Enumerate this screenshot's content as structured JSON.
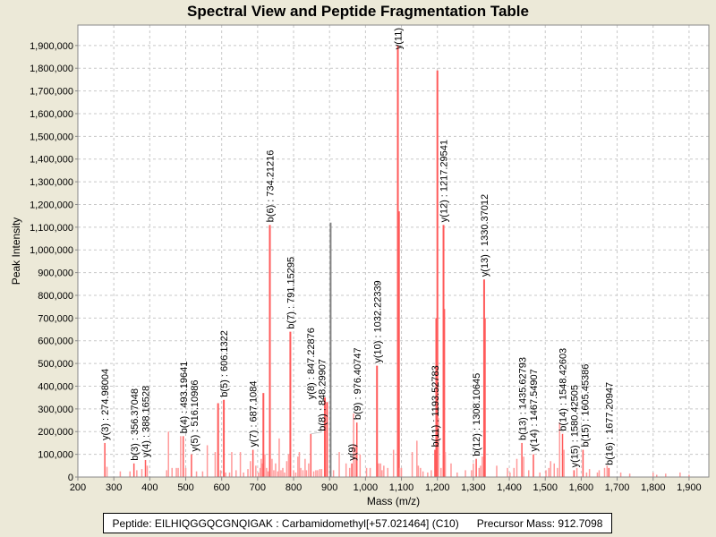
{
  "chart_data": {
    "type": "bar",
    "title": "Spectral View and Peptide Fragmentation Table",
    "xlabel": "Mass (m/z)",
    "ylabel": "Peak Intensity",
    "xlim": [
      200,
      1955
    ],
    "ylim": [
      0,
      1990000
    ],
    "xticks": [
      200,
      300,
      400,
      500,
      600,
      700,
      800,
      900,
      1000,
      1100,
      1200,
      1300,
      1400,
      1500,
      1600,
      1700,
      1800,
      1900
    ],
    "yticks": [
      0,
      100000,
      200000,
      300000,
      400000,
      500000,
      600000,
      700000,
      800000,
      900000,
      1000000,
      1100000,
      1200000,
      1300000,
      1400000,
      1500000,
      1600000,
      1700000,
      1800000,
      1900000
    ],
    "grid": true,
    "colors": {
      "annotated": "#ff5a5a",
      "peak": "#ff9a9a",
      "precursor": "#808080",
      "grid": "#c8c8c8"
    },
    "peaks": [
      [
        275,
        150000
      ],
      [
        281,
        45000
      ],
      [
        318,
        25000
      ],
      [
        345,
        25000
      ],
      [
        356,
        60000
      ],
      [
        364,
        30000
      ],
      [
        378,
        35000
      ],
      [
        388,
        75000
      ],
      [
        393,
        50000
      ],
      [
        447,
        30000
      ],
      [
        452,
        200000
      ],
      [
        462,
        40000
      ],
      [
        474,
        40000
      ],
      [
        479,
        40000
      ],
      [
        486,
        180000
      ],
      [
        493,
        180000
      ],
      [
        500,
        40000
      ],
      [
        516,
        100000
      ],
      [
        530,
        25000
      ],
      [
        547,
        25000
      ],
      [
        560,
        140000
      ],
      [
        582,
        110000
      ],
      [
        590,
        325000
      ],
      [
        597,
        30000
      ],
      [
        606,
        340000
      ],
      [
        611,
        20000
      ],
      [
        622,
        20000
      ],
      [
        628,
        110000
      ],
      [
        640,
        30000
      ],
      [
        652,
        110000
      ],
      [
        661,
        20000
      ],
      [
        673,
        35000
      ],
      [
        680,
        70000
      ],
      [
        687,
        120000
      ],
      [
        695,
        50000
      ],
      [
        702,
        20000
      ],
      [
        707,
        40000
      ],
      [
        710,
        80000
      ],
      [
        713,
        60000
      ],
      [
        716,
        370000
      ],
      [
        720,
        100000
      ],
      [
        725,
        40000
      ],
      [
        729,
        25000
      ],
      [
        734,
        1110000
      ],
      [
        740,
        80000
      ],
      [
        745,
        30000
      ],
      [
        750,
        60000
      ],
      [
        756,
        25000
      ],
      [
        760,
        170000
      ],
      [
        765,
        30000
      ],
      [
        770,
        40000
      ],
      [
        775,
        20000
      ],
      [
        781,
        70000
      ],
      [
        786,
        100000
      ],
      [
        791,
        640000
      ],
      [
        800,
        30000
      ],
      [
        806,
        20000
      ],
      [
        812,
        90000
      ],
      [
        816,
        110000
      ],
      [
        820,
        40000
      ],
      [
        826,
        30000
      ],
      [
        832,
        80000
      ],
      [
        836,
        30000
      ],
      [
        842,
        60000
      ],
      [
        848,
        190000
      ],
      [
        856,
        25000
      ],
      [
        862,
        30000
      ],
      [
        867,
        30000
      ],
      [
        873,
        35000
      ],
      [
        878,
        35000
      ],
      [
        887,
        350000
      ],
      [
        893,
        330000
      ],
      [
        903,
        1120000,
        "precursor"
      ],
      [
        911,
        30000
      ],
      [
        927,
        110000
      ],
      [
        946,
        60000
      ],
      [
        956,
        40000
      ],
      [
        962,
        60000
      ],
      [
        967,
        280000
      ],
      [
        972,
        140000
      ],
      [
        976,
        240000
      ],
      [
        985,
        100000
      ],
      [
        1003,
        40000
      ],
      [
        1013,
        40000
      ],
      [
        1032,
        490000
      ],
      [
        1037,
        60000
      ],
      [
        1042,
        60000
      ],
      [
        1046,
        30000
      ],
      [
        1051,
        50000
      ],
      [
        1062,
        40000
      ],
      [
        1078,
        120000
      ],
      [
        1090,
        1900000
      ],
      [
        1093,
        1170000
      ],
      [
        1095,
        40000
      ],
      [
        1100,
        40000
      ],
      [
        1130,
        110000
      ],
      [
        1143,
        160000
      ],
      [
        1147,
        50000
      ],
      [
        1153,
        40000
      ],
      [
        1160,
        25000
      ],
      [
        1173,
        20000
      ],
      [
        1183,
        30000
      ],
      [
        1193,
        120000
      ],
      [
        1197,
        700000
      ],
      [
        1200,
        1790000
      ],
      [
        1203,
        260000
      ],
      [
        1210,
        40000
      ],
      [
        1217,
        1110000
      ],
      [
        1219,
        740000
      ],
      [
        1222,
        110000
      ],
      [
        1238,
        60000
      ],
      [
        1255,
        20000
      ],
      [
        1278,
        30000
      ],
      [
        1295,
        30000
      ],
      [
        1300,
        60000
      ],
      [
        1308,
        80000
      ],
      [
        1316,
        40000
      ],
      [
        1320,
        50000
      ],
      [
        1325,
        90000
      ],
      [
        1330,
        870000
      ],
      [
        1332,
        700000
      ],
      [
        1365,
        50000
      ],
      [
        1395,
        40000
      ],
      [
        1402,
        20000
      ],
      [
        1413,
        40000
      ],
      [
        1421,
        80000
      ],
      [
        1435,
        150000
      ],
      [
        1440,
        90000
      ],
      [
        1454,
        30000
      ],
      [
        1467,
        100000
      ],
      [
        1485,
        20000
      ],
      [
        1502,
        30000
      ],
      [
        1510,
        40000
      ],
      [
        1515,
        70000
      ],
      [
        1525,
        60000
      ],
      [
        1534,
        40000
      ],
      [
        1540,
        240000
      ],
      [
        1548,
        190000
      ],
      [
        1552,
        120000
      ],
      [
        1580,
        30000
      ],
      [
        1588,
        40000
      ],
      [
        1605,
        120000
      ],
      [
        1615,
        20000
      ],
      [
        1623,
        35000
      ],
      [
        1645,
        20000
      ],
      [
        1650,
        30000
      ],
      [
        1665,
        40000
      ],
      [
        1672,
        50000
      ],
      [
        1677,
        40000
      ],
      [
        1710,
        20000
      ],
      [
        1735,
        15000
      ],
      [
        1800,
        20000
      ],
      [
        1810,
        10000
      ],
      [
        1835,
        15000
      ],
      [
        1875,
        20000
      ],
      [
        1900,
        10000
      ]
    ],
    "annotations": [
      {
        "mz": 274.98,
        "i": 150000,
        "text": "y(3) : 274.98004"
      },
      {
        "mz": 356.37,
        "i": 60000,
        "text": "b(3) : 356.37048"
      },
      {
        "mz": 388.17,
        "i": 75000,
        "text": "y(4) : 388.16528"
      },
      {
        "mz": 493.2,
        "i": 180000,
        "text": "b(4) : 493.19641"
      },
      {
        "mz": 516.11,
        "i": 100000,
        "text": "y(5) : 516.10986"
      },
      {
        "mz": 606.13,
        "i": 340000,
        "text": "b(5) : 606.1322"
      },
      {
        "mz": 687.11,
        "i": 120000,
        "text": "y(7) : 687.1084"
      },
      {
        "mz": 734.21,
        "i": 1110000,
        "text": "b(6) : 734.21216"
      },
      {
        "mz": 791.15,
        "i": 640000,
        "text": "b(7) : 791.15295"
      },
      {
        "mz": 847.23,
        "i": 330000,
        "text": "y(8) : 847.22876"
      },
      {
        "mz": 848.29,
        "i": 190000,
        "text": "b(8) : 848.29907"
      },
      {
        "mz": 962.0,
        "i": 60000,
        "text": "y(9)"
      },
      {
        "mz": 976.41,
        "i": 240000,
        "text": "b(9) : 976.40747"
      },
      {
        "mz": 1032.22,
        "i": 490000,
        "text": "y(10) : 1032.22339"
      },
      {
        "mz": 1090.0,
        "i": 1900000,
        "text": "y(11)"
      },
      {
        "mz": 1193.53,
        "i": 120000,
        "text": "b(11) : 1193.52783"
      },
      {
        "mz": 1217.3,
        "i": 1110000,
        "text": "y(12) : 1217.29541"
      },
      {
        "mz": 1308.11,
        "i": 80000,
        "text": "b(12) : 1308.10645"
      },
      {
        "mz": 1330.37,
        "i": 870000,
        "text": "y(13) : 1330.37012"
      },
      {
        "mz": 1435.63,
        "i": 150000,
        "text": "b(13) : 1435.62793"
      },
      {
        "mz": 1467.55,
        "i": 100000,
        "text": "y(14) : 1467.54907"
      },
      {
        "mz": 1548.43,
        "i": 190000,
        "text": "b(14) : 1548.42603"
      },
      {
        "mz": 1580.43,
        "i": 30000,
        "text": "y(15) : 1580.42505"
      },
      {
        "mz": 1605.45,
        "i": 120000,
        "text": "b(15) : 1605.45386"
      },
      {
        "mz": 1677.21,
        "i": 40000,
        "text": "b(16) : 1677.20947"
      }
    ]
  },
  "legend": {
    "peptide": "Peptide: EILHIQGGQCGNQIGAK : Carbamidomethyl[+57.021464] (C10)",
    "precursor": "Precursor Mass: 912.7098"
  }
}
